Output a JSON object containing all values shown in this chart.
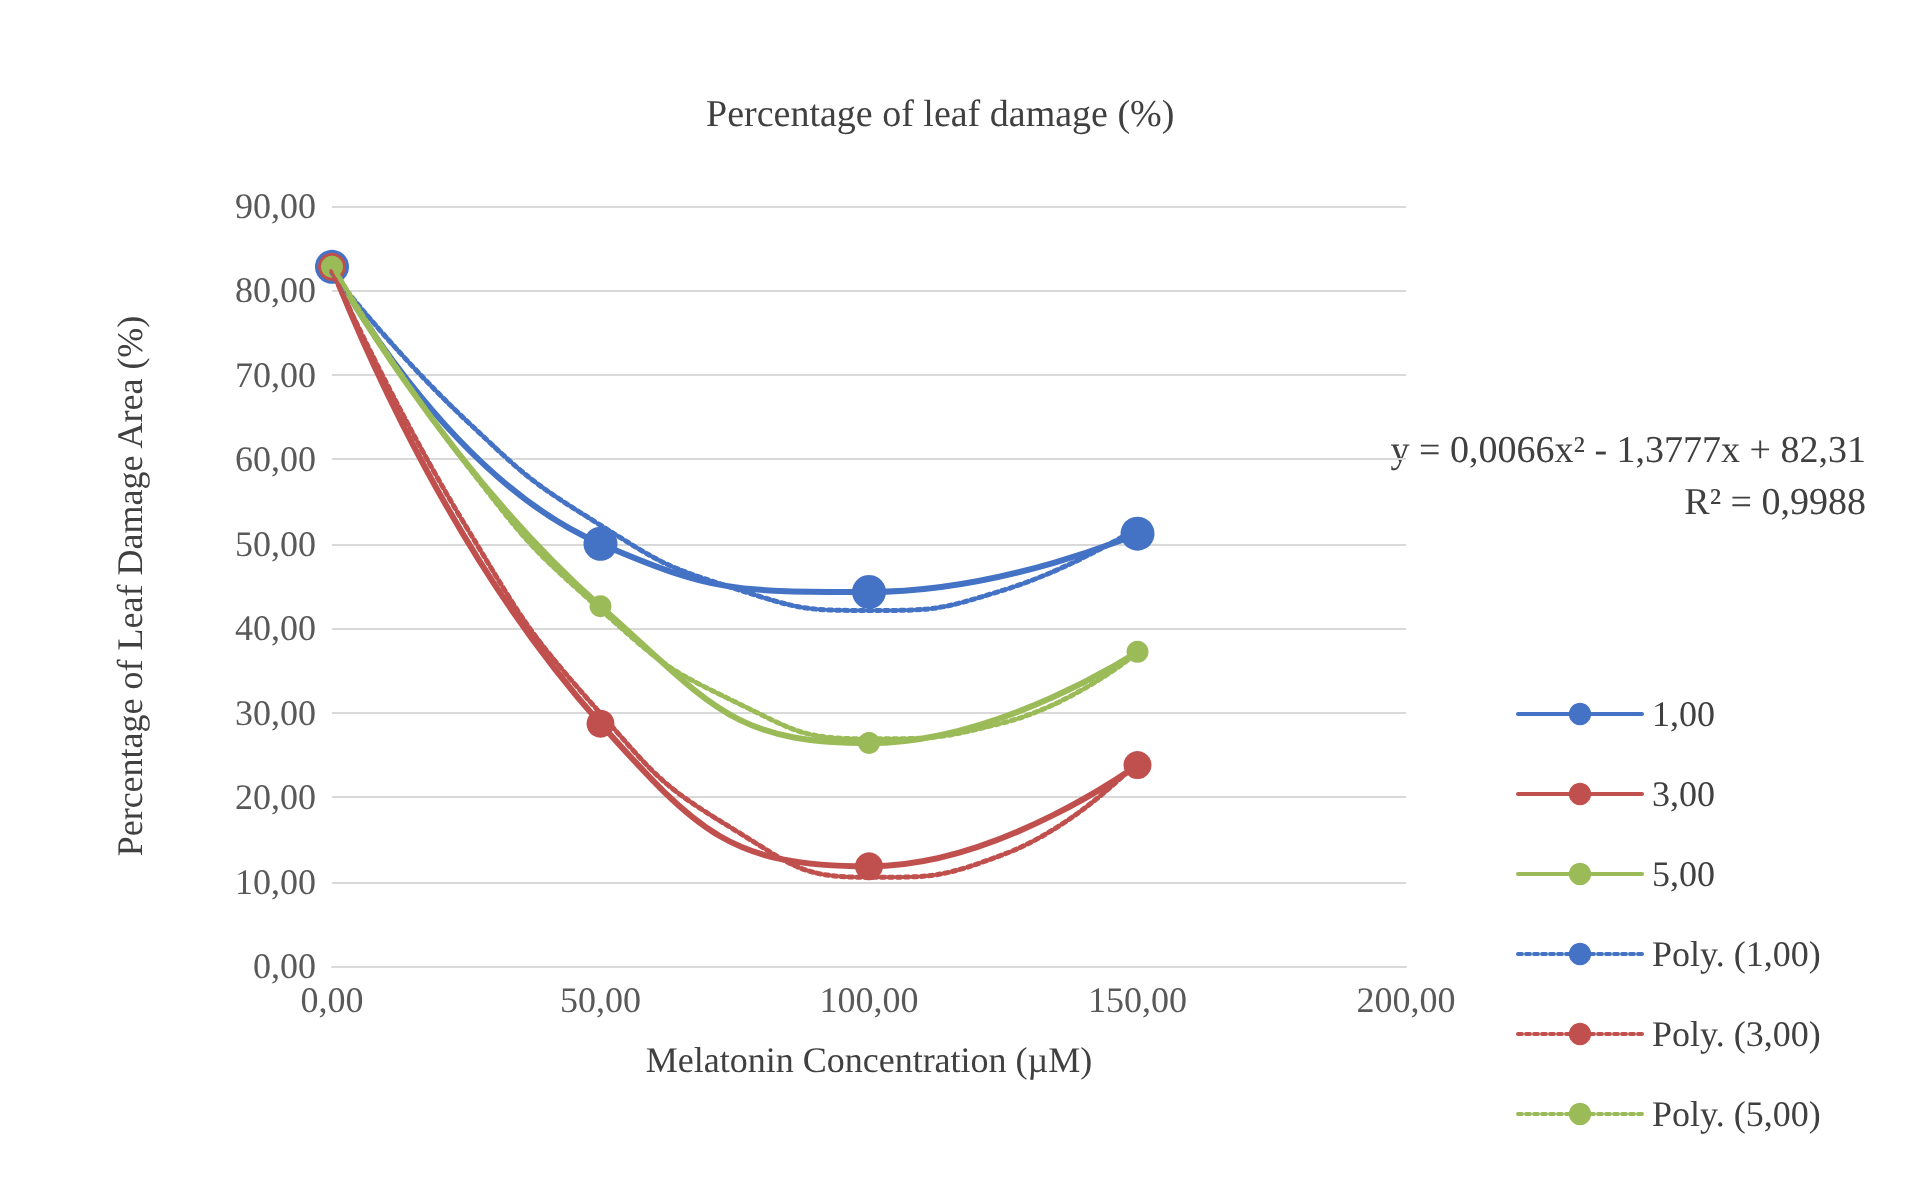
{
  "chart_data": {
    "type": "line",
    "title": "Percentage of leaf damage (%)",
    "xlabel": "Melatonin Concentration (µM)",
    "ylabel": "Percentage of Leaf Damage Area (%)",
    "x": [
      0,
      50,
      100,
      150
    ],
    "xlim": [
      0,
      200
    ],
    "xticks": [
      {
        "value": 0,
        "label": "0,00"
      },
      {
        "value": 50,
        "label": "50,00"
      },
      {
        "value": 100,
        "label": "100,00"
      },
      {
        "value": 150,
        "label": "150,00"
      },
      {
        "value": 200,
        "label": "200,00"
      }
    ],
    "ylim": [
      0,
      90
    ],
    "yticks": [
      {
        "value": 0,
        "label": "0,00"
      },
      {
        "value": 10,
        "label": "10,00"
      },
      {
        "value": 20,
        "label": "20,00"
      },
      {
        "value": 30,
        "label": "30,00"
      },
      {
        "value": 40,
        "label": "40,00"
      },
      {
        "value": 50,
        "label": "50,00"
      },
      {
        "value": 60,
        "label": "60,00"
      },
      {
        "value": 70,
        "label": "70,00"
      },
      {
        "value": 80,
        "label": "80,00"
      },
      {
        "value": 90,
        "label": "90,00"
      }
    ],
    "grid": "y",
    "legend": "right",
    "marker": "circle",
    "line_style": "solid",
    "annotations": [
      "y = 0,0066x² - 1,3777x + 82,31",
      "R² = 0,9988"
    ],
    "series": [
      {
        "name": "1,00",
        "color": "#4472c4",
        "values": [
          82.8,
          50,
          44.3,
          51.2
        ]
      },
      {
        "name": "3,00",
        "color": "#c0504d",
        "values": [
          82.8,
          28.7,
          11.8,
          23.8
        ]
      },
      {
        "name": "5,00",
        "color": "#9bbb59",
        "values": [
          82.8,
          42.6,
          26.4,
          37.2
        ]
      },
      {
        "name": "Poly. (1,00)",
        "color": "#4472c4",
        "marker": "none",
        "line_style": "dotted",
        "x": [
          0,
          25,
          50,
          75,
          100,
          125,
          150
        ],
        "values": [
          82.1,
          64.6,
          52.2,
          44.7,
          42.1,
          44.5,
          51.9
        ]
      },
      {
        "name": "Poly. (3,00)",
        "color": "#c0504d",
        "marker": "none",
        "line_style": "dotted",
        "x": [
          0,
          25,
          50,
          75,
          100,
          125,
          150
        ],
        "values": [
          82.3,
          52,
          29.9,
          16.1,
          10.5,
          13.2,
          24.2
        ]
      },
      {
        "name": "Poly. (5,00)",
        "color": "#9bbb59",
        "marker": "none",
        "line_style": "dotted",
        "x": [
          0,
          25,
          50,
          75,
          100,
          125,
          150
        ],
        "values": [
          83,
          59.4,
          42.2,
          31.3,
          26.9,
          28.8,
          37.1
        ]
      }
    ]
  }
}
